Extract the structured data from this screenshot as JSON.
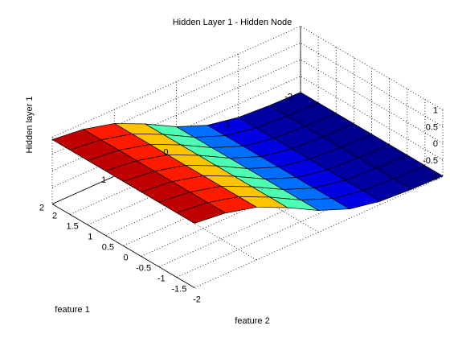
{
  "chart_data": {
    "type": "surface",
    "title": "Hidden Layer 1 - Hidden Node",
    "xlabel": "feature 1",
    "ylabel": "feature 2",
    "zlabel": "Hidden layer 1",
    "x": [
      -2,
      -1.5,
      -1,
      -0.5,
      0,
      0.5,
      1,
      1.5,
      2
    ],
    "y": [
      2,
      1.5,
      1,
      0.5,
      0,
      -0.5,
      -1,
      -1.5,
      -2
    ],
    "z": [
      [
        -0.98,
        -0.96,
        -0.9,
        -0.72,
        -0.35,
        0.15,
        0.58,
        0.82,
        0.93
      ],
      [
        -0.98,
        -0.96,
        -0.9,
        -0.72,
        -0.35,
        0.15,
        0.58,
        0.82,
        0.93
      ],
      [
        -0.98,
        -0.96,
        -0.9,
        -0.72,
        -0.35,
        0.15,
        0.58,
        0.82,
        0.93
      ],
      [
        -0.98,
        -0.96,
        -0.9,
        -0.72,
        -0.35,
        0.15,
        0.58,
        0.82,
        0.93
      ],
      [
        -0.98,
        -0.96,
        -0.9,
        -0.72,
        -0.35,
        0.15,
        0.58,
        0.82,
        0.93
      ],
      [
        -0.98,
        -0.96,
        -0.9,
        -0.72,
        -0.35,
        0.15,
        0.58,
        0.82,
        0.93
      ],
      [
        -0.98,
        -0.96,
        -0.9,
        -0.72,
        -0.35,
        0.15,
        0.58,
        0.82,
        0.93
      ],
      [
        -0.98,
        -0.96,
        -0.9,
        -0.72,
        -0.35,
        0.15,
        0.58,
        0.82,
        0.93
      ],
      [
        -0.98,
        -0.96,
        -0.9,
        -0.72,
        -0.35,
        0.15,
        0.58,
        0.82,
        0.93
      ]
    ],
    "xlim": [
      -2,
      2
    ],
    "ylim": [
      -2,
      2
    ],
    "zlim": [
      -1,
      1
    ],
    "x_ticks": [
      -2,
      -1,
      0,
      1,
      2
    ],
    "y_ticks": [
      2,
      1.5,
      1,
      0.5,
      0,
      -0.5,
      -1,
      -1.5,
      -2
    ],
    "z_ticks": [
      -1,
      -0.5,
      0,
      0.5,
      1
    ],
    "x_tick_labels": [
      "-2",
      "-1",
      "0",
      "1",
      "2"
    ],
    "y_tick_labels": [
      "2",
      "1.5",
      "1",
      "0.5",
      "0",
      "-0.5",
      "-1",
      "-1.5",
      "-2"
    ],
    "z_tick_labels": [
      "-1",
      "-0.5",
      "0",
      "0.5",
      "1"
    ],
    "colormap": "jet",
    "grid": true,
    "legend": "none"
  }
}
